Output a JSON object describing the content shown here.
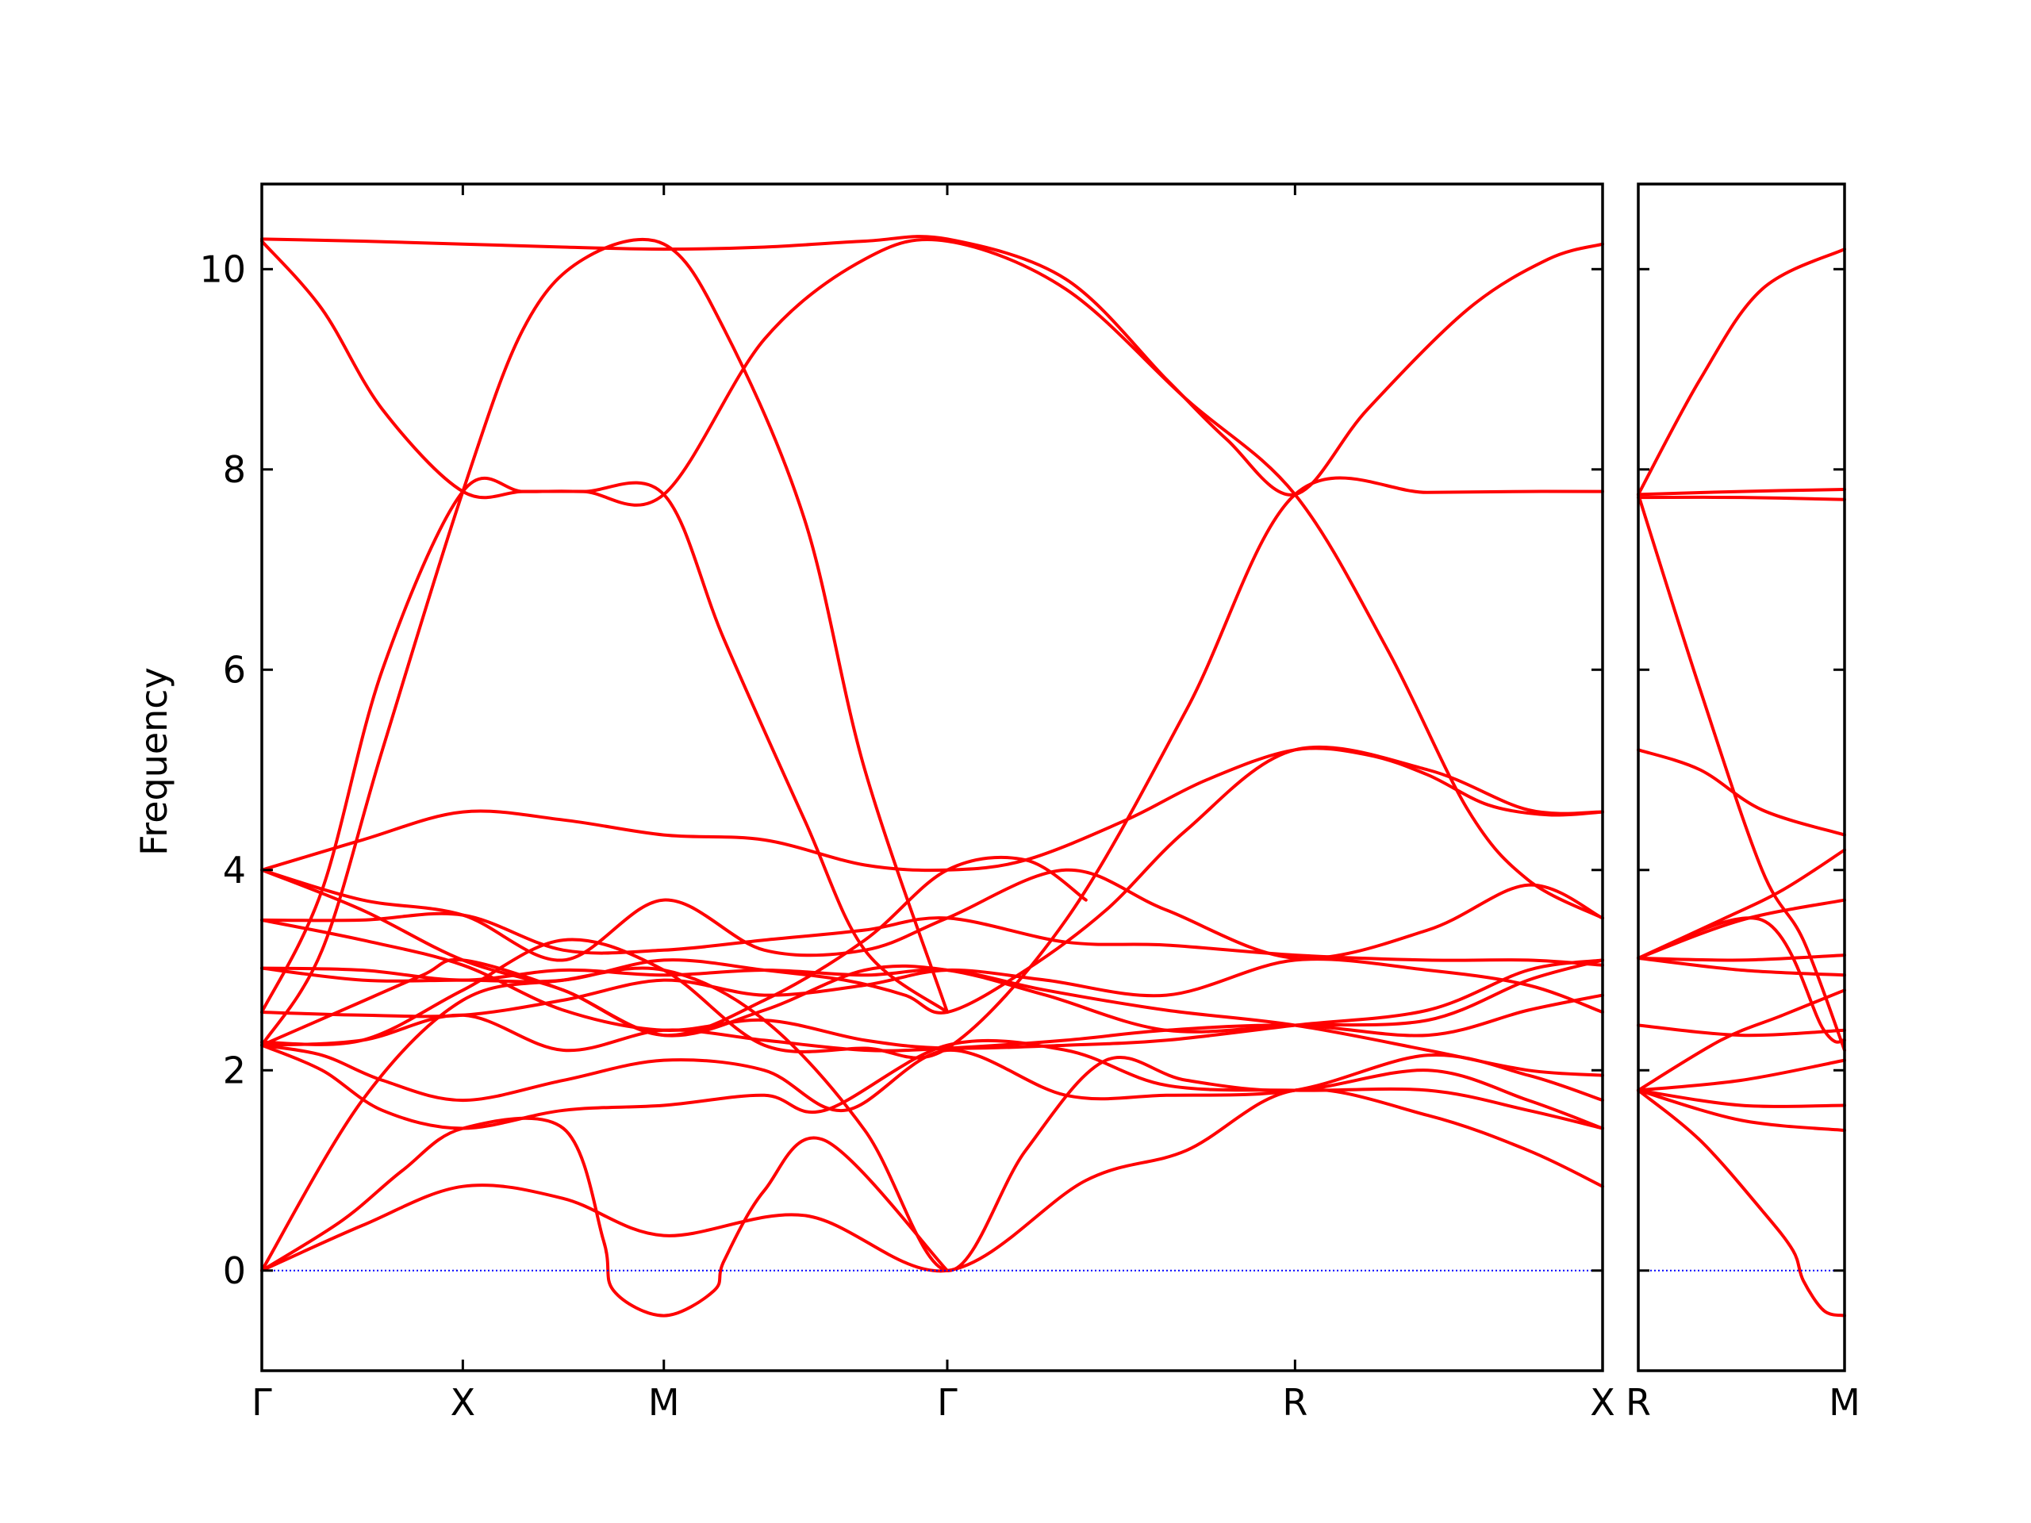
{
  "colors": {
    "band": "#ff0000",
    "zero_line": "#0000ff",
    "axes": "#000000",
    "background": "#ffffff"
  },
  "chart_data": {
    "type": "line",
    "title": "",
    "ylabel": "Frequency",
    "ylim": [
      -1.0,
      10.85
    ],
    "yticks": [
      0,
      2,
      4,
      6,
      8,
      10
    ],
    "ytick_labels": [
      "0",
      "2",
      "4",
      "6",
      "8",
      "10"
    ],
    "zero_line": true,
    "grid": false,
    "legend": "none",
    "panels": [
      {
        "name": "panel-main",
        "x_range": [
          0,
          6.67
        ],
        "ticks": [
          {
            "x": 0,
            "label": "Γ"
          },
          {
            "x": 1,
            "label": "X"
          },
          {
            "x": 2,
            "label": "M"
          },
          {
            "x": 3.41,
            "label": "Γ"
          },
          {
            "x": 5.14,
            "label": "R"
          },
          {
            "x": 6.67,
            "label": "X"
          }
        ],
        "bands": [
          {
            "x": [
              0,
              0.5,
              1,
              1.5,
              2,
              2.7,
              3.41,
              4.1,
              4.6,
              5.14,
              5.8,
              6.3,
              6.67
            ],
            "y": [
              0,
              0.45,
              0.84,
              0.72,
              0.35,
              0.55,
              0,
              0.9,
              1.2,
              1.8,
              1.55,
              1.2,
              0.84
            ]
          },
          {
            "x": [
              0,
              0.4,
              0.7,
              1,
              1.5,
              1.7,
              1.75,
              2,
              2.25,
              2.3,
              2.5,
              2.8,
              3.41
            ],
            "y": [
              0,
              0.5,
              1.0,
              1.42,
              1.42,
              0.3,
              -0.2,
              -0.45,
              -0.2,
              0.1,
              0.8,
              1.3,
              0
            ]
          },
          {
            "x": [
              0,
              0.5,
              1,
              1.5,
              2,
              2.5,
              3.0,
              3.41,
              3.8,
              4.2,
              4.6,
              5.14,
              5.8,
              6.3,
              6.67
            ],
            "y": [
              0,
              1.7,
              2.7,
              2.9,
              3.0,
              2.5,
              1.4,
              0,
              1.2,
              2.1,
              1.9,
              1.8,
              2.0,
              1.7,
              1.42
            ]
          },
          {
            "x": [
              0,
              0.3,
              0.6,
              1,
              1.5,
              2,
              2.5,
              2.8,
              3.41,
              4.0,
              4.5,
              5.14,
              5.8,
              6.3,
              6.67
            ],
            "y": [
              2.25,
              2.0,
              1.6,
              1.42,
              1.6,
              1.65,
              1.75,
              1.6,
              2.25,
              2.2,
              1.85,
              1.8,
              1.8,
              1.6,
              1.42
            ]
          },
          {
            "x": [
              0,
              0.3,
              0.6,
              1,
              1.5,
              2,
              2.5,
              2.9,
              3.41,
              4.0,
              4.5,
              5.14,
              5.8,
              6.3,
              6.67
            ],
            "y": [
              2.25,
              2.15,
              1.9,
              1.7,
              1.9,
              2.1,
              2.0,
              1.6,
              2.2,
              1.75,
              1.75,
              1.8,
              2.15,
              1.95,
              1.7
            ]
          },
          {
            "x": [
              0,
              0.5,
              1,
              1.5,
              2,
              2.5,
              3.0,
              3.41,
              4.0,
              4.5,
              5.14,
              5.8,
              6.3,
              6.67
            ],
            "y": [
              2.25,
              2.3,
              2.55,
              2.2,
              2.4,
              2.3,
              2.2,
              2.22,
              2.3,
              2.4,
              2.45,
              2.35,
              2.6,
              2.75
            ]
          },
          {
            "x": [
              0,
              0.4,
              0.8,
              1,
              1.5,
              2,
              2.5,
              3.0,
              3.41,
              3.9,
              4.5,
              5.14,
              5.8,
              6.3,
              6.67
            ],
            "y": [
              2.25,
              2.6,
              2.95,
              3.1,
              2.8,
              2.35,
              2.6,
              3.0,
              3.0,
              2.75,
              2.4,
              2.45,
              2.5,
              2.9,
              3.1
            ]
          },
          {
            "x": [
              0,
              0.5,
              1,
              1.5,
              2,
              2.5,
              3.0,
              3.41,
              3.9,
              4.5,
              5.14,
              5.8,
              6.3,
              6.67
            ],
            "y": [
              2.58,
              2.55,
              2.55,
              2.7,
              2.9,
              2.75,
              2.85,
              3.0,
              2.9,
              2.75,
              3.1,
              3.0,
              2.85,
              2.58
            ]
          },
          {
            "x": [
              0,
              0.5,
              1,
              1.5,
              2,
              2.5,
              3.0,
              3.41,
              3.9,
              4.5,
              5.14,
              5.8,
              6.3,
              6.67
            ],
            "y": [
              3.02,
              3.0,
              2.9,
              3.0,
              2.95,
              3.0,
              2.95,
              3.0,
              2.8,
              2.6,
              2.45,
              2.2,
              2.0,
              1.95
            ]
          },
          {
            "x": [
              0,
              0.5,
              1,
              1.5,
              2,
              2.5,
              3.0,
              3.41,
              4.0,
              4.5,
              5.14,
              5.8,
              6.3,
              6.67
            ],
            "y": [
              3.5,
              3.3,
              3.05,
              2.6,
              2.4,
              2.5,
              2.3,
              2.22,
              2.25,
              2.3,
              2.45,
              2.6,
              3.0,
              3.1
            ]
          },
          {
            "x": [
              0,
              0.5,
              1,
              1.5,
              2,
              2.5,
              3.0,
              3.41,
              4.0,
              4.5,
              5.14,
              5.8,
              6.3,
              6.67
            ],
            "y": [
              3.5,
              3.5,
              3.55,
              3.2,
              3.2,
              3.3,
              3.4,
              3.52,
              3.28,
              3.25,
              3.15,
              3.1,
              3.1,
              3.05
            ]
          },
          {
            "x": [
              0,
              0.5,
              1,
              1.5,
              2,
              2.5,
              2.9,
              3.2,
              3.41,
              3.8,
              4.2,
              4.6,
              5.14,
              5.8,
              6.3,
              6.67
            ],
            "y": [
              3.02,
              2.9,
              2.9,
              2.9,
              3.1,
              3.0,
              2.9,
              2.75,
              2.58,
              3.0,
              3.6,
              4.4,
              5.2,
              5.0,
              4.6,
              4.58
            ]
          },
          {
            "x": [
              0,
              0.5,
              1,
              1.5,
              2,
              2.5,
              3.0,
              3.41,
              4.0,
              4.5,
              5.14,
              5.8,
              6.3,
              6.67
            ],
            "y": [
              4.0,
              3.7,
              3.55,
              3.1,
              3.7,
              3.2,
              3.2,
              3.52,
              4.0,
              3.6,
              3.12,
              3.4,
              3.85,
              3.52
            ]
          },
          {
            "x": [
              0,
              0.5,
              1,
              1.5,
              2,
              2.5,
              3.0,
              3.41,
              3.8,
              4.3,
              4.7,
              5.14,
              5.5,
              5.8,
              6.1,
              6.4,
              6.67
            ],
            "y": [
              4.0,
              4.3,
              4.58,
              4.5,
              4.35,
              4.3,
              4.05,
              4.0,
              4.1,
              4.5,
              4.9,
              5.2,
              5.15,
              4.95,
              4.65,
              4.55,
              4.58
            ]
          },
          {
            "x": [
              0,
              0.5,
              1,
              1.5,
              2,
              2.5,
              3.0,
              3.41,
              3.8,
              4.1
            ],
            "y": [
              4.0,
              3.6,
              3.1,
              2.8,
              2.35,
              2.7,
              3.3,
              4.0,
              4.1,
              3.7
            ]
          },
          {
            "x": [
              0,
              0.3,
              0.6,
              1,
              1.3,
              1.6,
              2,
              2.3,
              2.7,
              3.0,
              3.41
            ],
            "y": [
              2.58,
              3.8,
              6.0,
              7.78,
              7.78,
              7.78,
              7.75,
              6.3,
              4.5,
              3.2,
              2.58
            ]
          },
          {
            "x": [
              0,
              0.3,
              0.6,
              1,
              1.3,
              1.6,
              2,
              2.5,
              3.0,
              3.41,
              4.0,
              4.6,
              5.14,
              5.6,
              6.0,
              6.3,
              6.67
            ],
            "y": [
              10.28,
              9.6,
              8.6,
              7.78,
              7.78,
              7.78,
              7.75,
              9.3,
              10.1,
              10.28,
              9.8,
              8.7,
              7.75,
              6.2,
              4.6,
              3.9,
              3.52
            ]
          },
          {
            "x": [
              0,
              0.5,
              1,
              1.5,
              2,
              2.5,
              3.0,
              3.41,
              4.0,
              4.5,
              4.8,
              5.14,
              5.5,
              6.0,
              6.4,
              6.67
            ],
            "y": [
              10.3,
              10.28,
              10.25,
              10.22,
              10.2,
              10.22,
              10.28,
              10.3,
              9.9,
              8.9,
              8.3,
              7.75,
              8.6,
              9.6,
              10.1,
              10.25
            ]
          },
          {
            "x": [
              0,
              0.3,
              0.6,
              1,
              1.3,
              1.6,
              2,
              2.3,
              2.7,
              3.0,
              3.41
            ],
            "y": [
              2.25,
              3.2,
              5.2,
              7.78,
              9.4,
              10.1,
              10.25,
              9.4,
              7.5,
              5.0,
              2.58
            ]
          },
          {
            "x": [
              0,
              0.5,
              1,
              1.5,
              2,
              2.5,
              3.0,
              3.41,
              4.0,
              4.6,
              5.14,
              5.8,
              6.3,
              6.67
            ],
            "y": [
              2.28,
              2.3,
              2.8,
              3.3,
              3.0,
              2.25,
              2.22,
              2.22,
              3.5,
              5.6,
              7.75,
              7.77,
              7.78,
              7.78
            ]
          }
        ]
      },
      {
        "name": "panel-right",
        "x_range": [
          0,
          1
        ],
        "ticks": [
          {
            "x": 0,
            "label": "R"
          },
          {
            "x": 1,
            "label": "M"
          }
        ],
        "bands": [
          {
            "x": [
              0,
              0.3,
              0.6,
              0.75,
              0.8,
              0.9,
              1
            ],
            "y": [
              1.8,
              1.3,
              0.6,
              0.2,
              -0.1,
              -0.4,
              -0.45
            ]
          },
          {
            "x": [
              0,
              0.5,
              1
            ],
            "y": [
              1.8,
              1.5,
              1.4
            ]
          },
          {
            "x": [
              0,
              0.5,
              1
            ],
            "y": [
              1.8,
              1.65,
              1.65
            ]
          },
          {
            "x": [
              0,
              0.5,
              1
            ],
            "y": [
              1.8,
              1.9,
              2.1
            ]
          },
          {
            "x": [
              0,
              0.4,
              0.7,
              1
            ],
            "y": [
              1.8,
              2.3,
              2.55,
              2.8
            ]
          },
          {
            "x": [
              0,
              0.5,
              1
            ],
            "y": [
              2.45,
              2.35,
              2.4
            ]
          },
          {
            "x": [
              0,
              0.5,
              1
            ],
            "y": [
              3.12,
              3.0,
              2.95
            ]
          },
          {
            "x": [
              0,
              0.5,
              1
            ],
            "y": [
              3.12,
              3.1,
              3.15
            ]
          },
          {
            "x": [
              0,
              0.6,
              0.9,
              1
            ],
            "y": [
              3.12,
              3.5,
              2.4,
              2.3
            ]
          },
          {
            "x": [
              0,
              0.5,
              1
            ],
            "y": [
              3.12,
              3.5,
              3.7
            ]
          },
          {
            "x": [
              0,
              0.4,
              0.7,
              1
            ],
            "y": [
              3.12,
              3.5,
              3.8,
              4.2
            ]
          },
          {
            "x": [
              0,
              0.3,
              0.6,
              1
            ],
            "y": [
              5.2,
              5.0,
              4.6,
              4.35
            ]
          },
          {
            "x": [
              0,
              0.3,
              0.6,
              0.8,
              1
            ],
            "y": [
              7.75,
              5.8,
              4.0,
              3.3,
              2.2
            ]
          },
          {
            "x": [
              0,
              0.3,
              0.6,
              1
            ],
            "y": [
              7.75,
              8.9,
              9.8,
              10.2
            ]
          },
          {
            "x": [
              0,
              0.5,
              1
            ],
            "y": [
              7.75,
              7.78,
              7.8
            ]
          },
          {
            "x": [
              0,
              0.5,
              1
            ],
            "y": [
              7.72,
              7.72,
              7.7
            ]
          }
        ]
      }
    ]
  }
}
